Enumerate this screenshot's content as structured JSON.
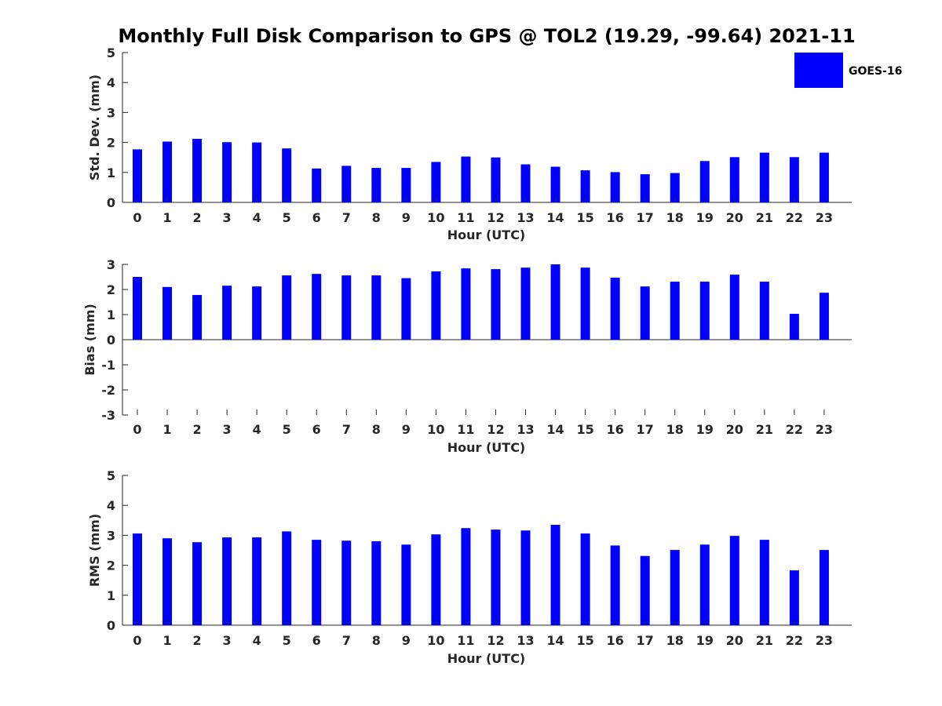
{
  "title": "Monthly Full Disk Comparison to GPS @ TOL2 (19.29, -99.64) 2021-11",
  "legend": {
    "label": "GOES-16",
    "color": "#0000ff",
    "placement": "top-right"
  },
  "chart_data": [
    {
      "type": "bar",
      "xlabel": "Hour (UTC)",
      "ylabel": "Std. Dev. (mm)",
      "ylim": [
        0,
        5
      ],
      "yticks": [
        "0",
        "1",
        "2",
        "3",
        "4",
        "5"
      ],
      "categories": [
        "0",
        "1",
        "2",
        "3",
        "4",
        "5",
        "6",
        "7",
        "8",
        "9",
        "10",
        "11",
        "12",
        "13",
        "14",
        "15",
        "16",
        "17",
        "18",
        "19",
        "20",
        "21",
        "22",
        "23"
      ],
      "series": [
        {
          "name": "GOES-16",
          "color": "#0000ff",
          "values": [
            1.77,
            2.03,
            2.12,
            2.01,
            2.0,
            1.8,
            1.13,
            1.22,
            1.15,
            1.15,
            1.35,
            1.53,
            1.5,
            1.27,
            1.19,
            1.07,
            1.01,
            0.94,
            0.98,
            1.38,
            1.51,
            1.66,
            1.51,
            1.66
          ]
        }
      ]
    },
    {
      "type": "bar",
      "xlabel": "Hour (UTC)",
      "ylabel": "Bias (mm)",
      "ylim": [
        -3,
        3
      ],
      "yticks": [
        "-3",
        "-2",
        "-1",
        "0",
        "1",
        "2",
        "3"
      ],
      "categories": [
        "0",
        "1",
        "2",
        "3",
        "4",
        "5",
        "6",
        "7",
        "8",
        "9",
        "10",
        "11",
        "12",
        "13",
        "14",
        "15",
        "16",
        "17",
        "18",
        "19",
        "20",
        "21",
        "22",
        "23"
      ],
      "series": [
        {
          "name": "GOES-16",
          "color": "#0000ff",
          "values": [
            2.5,
            2.1,
            1.78,
            2.15,
            2.12,
            2.56,
            2.62,
            2.56,
            2.56,
            2.45,
            2.72,
            2.84,
            2.81,
            2.87,
            3.0,
            2.87,
            2.47,
            2.12,
            2.31,
            2.31,
            2.59,
            2.31,
            1.03,
            1.87
          ]
        }
      ]
    },
    {
      "type": "bar",
      "xlabel": "Hour (UTC)",
      "ylabel": "RMS (mm)",
      "ylim": [
        0,
        5
      ],
      "yticks": [
        "0",
        "1",
        "2",
        "3",
        "4",
        "5"
      ],
      "categories": [
        "0",
        "1",
        "2",
        "3",
        "4",
        "5",
        "6",
        "7",
        "8",
        "9",
        "10",
        "11",
        "12",
        "13",
        "14",
        "15",
        "16",
        "17",
        "18",
        "19",
        "20",
        "21",
        "22",
        "23"
      ],
      "series": [
        {
          "name": "GOES-16",
          "color": "#0000ff",
          "values": [
            3.06,
            2.9,
            2.77,
            2.93,
            2.93,
            3.13,
            2.85,
            2.82,
            2.8,
            2.69,
            3.03,
            3.24,
            3.19,
            3.16,
            3.35,
            3.06,
            2.66,
            2.31,
            2.51,
            2.69,
            2.98,
            2.85,
            1.83,
            2.51
          ]
        }
      ]
    }
  ]
}
